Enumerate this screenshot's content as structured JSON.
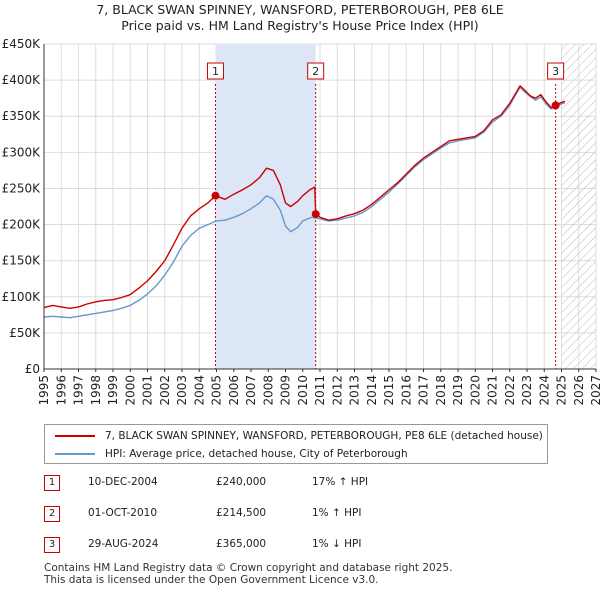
{
  "title_line1": "7, BLACK SWAN SPINNEY, WANSFORD, PETERBOROUGH, PE8 6LE",
  "title_line2": "Price paid vs. HM Land Registry's House Price Index (HPI)",
  "colors": {
    "property": "#cc0000",
    "hpi": "#6699cc",
    "shade": "#dde6f7",
    "marker": "#cc0000"
  },
  "chart_data": {
    "type": "line",
    "x_label": "",
    "y_label": "",
    "xlim": [
      1995,
      2027
    ],
    "ylim": [
      0,
      450000
    ],
    "y_ticks": [
      0,
      50000,
      100000,
      150000,
      200000,
      250000,
      300000,
      350000,
      400000,
      450000
    ],
    "y_tick_labels": [
      "£0",
      "£50K",
      "£100K",
      "£150K",
      "£200K",
      "£250K",
      "£300K",
      "£350K",
      "£400K",
      "£450K"
    ],
    "x_ticks": [
      1995,
      1996,
      1997,
      1998,
      1999,
      2000,
      2001,
      2002,
      2003,
      2004,
      2005,
      2006,
      2007,
      2008,
      2009,
      2010,
      2011,
      2012,
      2013,
      2014,
      2015,
      2016,
      2017,
      2018,
      2019,
      2020,
      2021,
      2022,
      2023,
      2024,
      2025,
      2026,
      2027
    ],
    "shaded_between": [
      2004.94,
      2010.75
    ],
    "hatched_from": 2025.0,
    "series": [
      {
        "name": "7, BLACK SWAN SPINNEY, WANSFORD, PETERBOROUGH, PE8 6LE (detached house)",
        "x": [
          1995,
          1995.5,
          1996,
          1996.5,
          1997,
          1997.5,
          1998,
          1998.5,
          1999,
          1999.5,
          2000,
          2000.5,
          2001,
          2001.5,
          2002,
          2002.5,
          2003,
          2003.5,
          2004,
          2004.5,
          2004.94,
          2005.5,
          2006,
          2006.5,
          2007,
          2007.5,
          2007.9,
          2008.3,
          2008.7,
          2009,
          2009.3,
          2009.7,
          2010,
          2010.4,
          2010.7,
          2010.75,
          2011,
          2011.5,
          2012,
          2012.5,
          2013,
          2013.5,
          2014,
          2014.5,
          2015,
          2015.5,
          2016,
          2016.5,
          2017,
          2017.5,
          2018,
          2018.5,
          2019,
          2019.5,
          2020,
          2020.5,
          2021,
          2021.5,
          2022,
          2022.3,
          2022.6,
          2022.9,
          2023.2,
          2023.5,
          2023.8,
          2024.1,
          2024.4,
          2024.66,
          2024.9,
          2025.2
        ],
        "values": [
          85000,
          88000,
          86000,
          84000,
          86000,
          90000,
          93000,
          95000,
          96000,
          99000,
          103000,
          112000,
          122000,
          135000,
          150000,
          172000,
          195000,
          212000,
          222000,
          230000,
          240000,
          235000,
          242000,
          248000,
          255000,
          265000,
          278000,
          275000,
          255000,
          230000,
          225000,
          232000,
          240000,
          248000,
          252000,
          214500,
          210000,
          206000,
          208000,
          212000,
          215000,
          220000,
          228000,
          238000,
          248000,
          258000,
          270000,
          282000,
          292000,
          300000,
          308000,
          316000,
          318000,
          320000,
          322000,
          330000,
          345000,
          352000,
          368000,
          380000,
          392000,
          385000,
          378000,
          375000,
          380000,
          370000,
          362000,
          365000,
          368000,
          371000
        ]
      },
      {
        "name": "HPI: Average price, detached house, City of Peterborough",
        "x": [
          1995,
          1995.5,
          1996,
          1996.5,
          1997,
          1997.5,
          1998,
          1998.5,
          1999,
          1999.5,
          2000,
          2000.5,
          2001,
          2001.5,
          2002,
          2002.5,
          2003,
          2003.5,
          2004,
          2004.5,
          2005,
          2005.5,
          2006,
          2006.5,
          2007,
          2007.5,
          2007.9,
          2008.3,
          2008.7,
          2009,
          2009.3,
          2009.7,
          2010,
          2010.5,
          2011,
          2011.5,
          2012,
          2012.5,
          2013,
          2013.5,
          2014,
          2014.5,
          2015,
          2015.5,
          2016,
          2016.5,
          2017,
          2017.5,
          2018,
          2018.5,
          2019,
          2019.5,
          2020,
          2020.5,
          2021,
          2021.5,
          2022,
          2022.3,
          2022.6,
          2022.9,
          2023.2,
          2023.5,
          2023.8,
          2024.1,
          2024.4,
          2024.66,
          2024.9,
          2025.2
        ],
        "values": [
          72000,
          73000,
          72000,
          71000,
          73000,
          75000,
          77000,
          79000,
          81000,
          84000,
          88000,
          95000,
          104000,
          115000,
          130000,
          148000,
          170000,
          185000,
          195000,
          200000,
          205000,
          206000,
          210000,
          215000,
          222000,
          230000,
          240000,
          235000,
          220000,
          198000,
          190000,
          196000,
          205000,
          210000,
          208000,
          205000,
          206000,
          209000,
          212000,
          217000,
          225000,
          235000,
          245000,
          256000,
          268000,
          280000,
          290000,
          298000,
          306000,
          313000,
          316000,
          318000,
          320000,
          328000,
          342000,
          350000,
          365000,
          378000,
          390000,
          383000,
          377000,
          372000,
          377000,
          367000,
          360000,
          362000,
          366000,
          369000
        ]
      }
    ],
    "sales": [
      {
        "label": "1",
        "x": 2004.94,
        "value": 240000
      },
      {
        "label": "2",
        "x": 2010.75,
        "value": 214500
      },
      {
        "label": "3",
        "x": 2024.66,
        "value": 365000
      }
    ]
  },
  "legend": {
    "property_label": "7, BLACK SWAN SPINNEY, WANSFORD, PETERBOROUGH, PE8 6LE (detached house)",
    "hpi_label": "HPI: Average price, detached house, City of Peterborough"
  },
  "sales_table": [
    {
      "num": "1",
      "date": "10-DEC-2004",
      "price": "£240,000",
      "hpi": "17% ↑ HPI"
    },
    {
      "num": "2",
      "date": "01-OCT-2010",
      "price": "£214,500",
      "hpi": "1% ↑ HPI"
    },
    {
      "num": "3",
      "date": "29-AUG-2024",
      "price": "£365,000",
      "hpi": "1% ↓ HPI"
    }
  ],
  "footer_line1": "Contains HM Land Registry data © Crown copyright and database right 2025.",
  "footer_line2": "This data is licensed under the Open Government Licence v3.0."
}
